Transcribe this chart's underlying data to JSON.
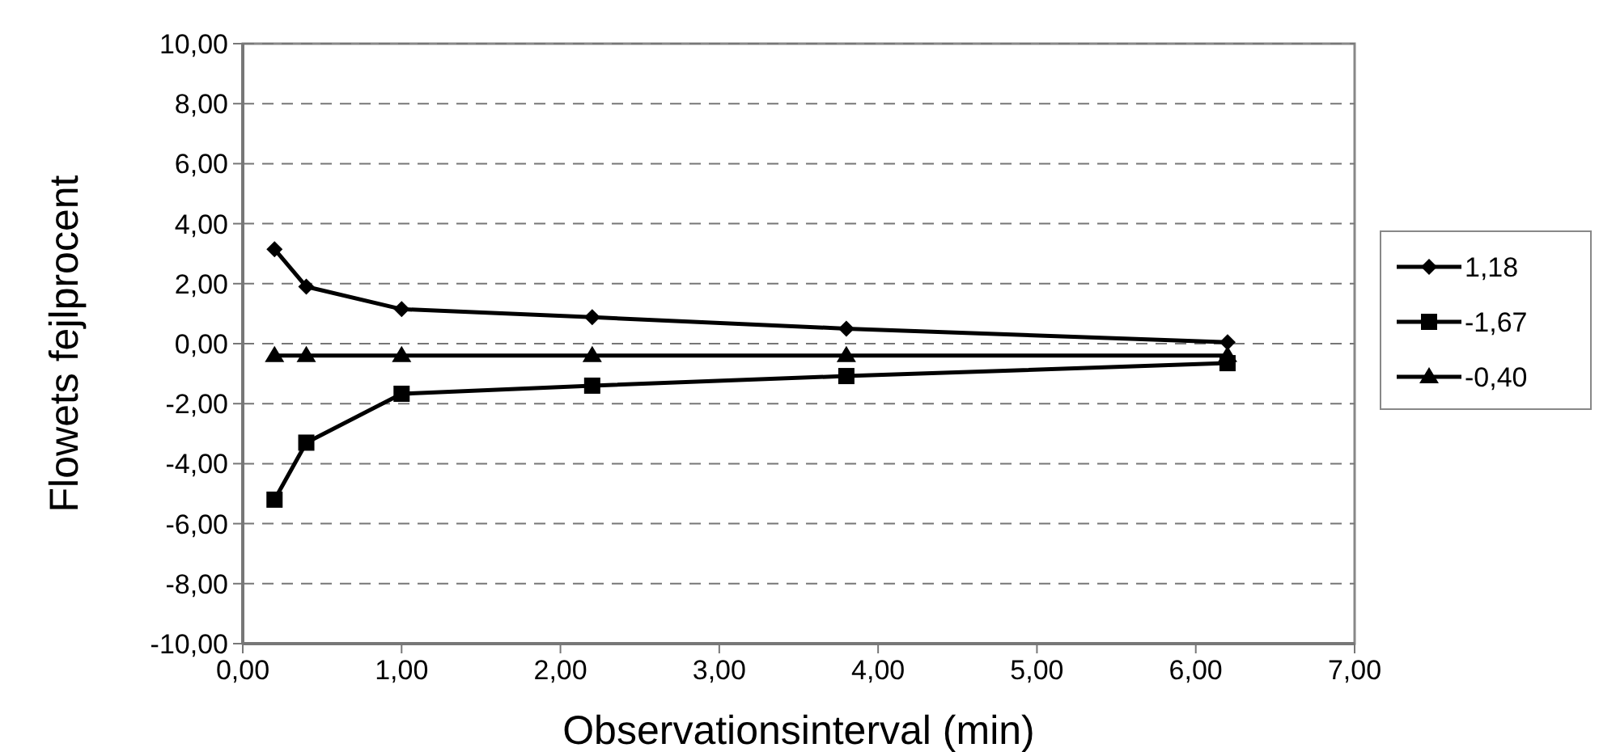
{
  "chart_data": {
    "type": "line",
    "xlabel": "Observationsinterval (min)",
    "ylabel": "Flowets fejlprocent",
    "x": [
      0.2,
      0.4,
      1.0,
      2.2,
      3.8,
      6.2
    ],
    "series": [
      {
        "name": "1,18",
        "color": "#000000",
        "marker": "diamond",
        "values": [
          3.15,
          1.9,
          1.15,
          0.88,
          0.5,
          0.05
        ]
      },
      {
        "name": "-1,67",
        "color": "#000000",
        "marker": "square",
        "values": [
          -5.2,
          -3.3,
          -1.67,
          -1.4,
          -1.08,
          -0.65
        ]
      },
      {
        "name": "-0,40",
        "color": "#000000",
        "marker": "triangle",
        "values": [
          -0.4,
          -0.4,
          -0.4,
          -0.4,
          -0.4,
          -0.4
        ]
      }
    ],
    "xlim": [
      0,
      7
    ],
    "xticks": [
      {
        "value": 0,
        "label": "0,00"
      },
      {
        "value": 1,
        "label": "1,00"
      },
      {
        "value": 2,
        "label": "2,00"
      },
      {
        "value": 3,
        "label": "3,00"
      },
      {
        "value": 4,
        "label": "4,00"
      },
      {
        "value": 5,
        "label": "5,00"
      },
      {
        "value": 6,
        "label": "6,00"
      },
      {
        "value": 7,
        "label": "7,00"
      }
    ],
    "ylim": [
      -10,
      10
    ],
    "yticks": [
      {
        "value": -10,
        "label": "-10,00"
      },
      {
        "value": -8,
        "label": "-8,00"
      },
      {
        "value": -6,
        "label": "-6,00"
      },
      {
        "value": -4,
        "label": "-4,00"
      },
      {
        "value": -2,
        "label": "-2,00"
      },
      {
        "value": 0,
        "label": "0,00"
      },
      {
        "value": 2,
        "label": "2,00"
      },
      {
        "value": 4,
        "label": "4,00"
      },
      {
        "value": 6,
        "label": "6,00"
      },
      {
        "value": 8,
        "label": "8,00"
      },
      {
        "value": 10,
        "label": "10,00"
      }
    ],
    "grid": "y",
    "legend": "right",
    "line_style": "solid"
  }
}
